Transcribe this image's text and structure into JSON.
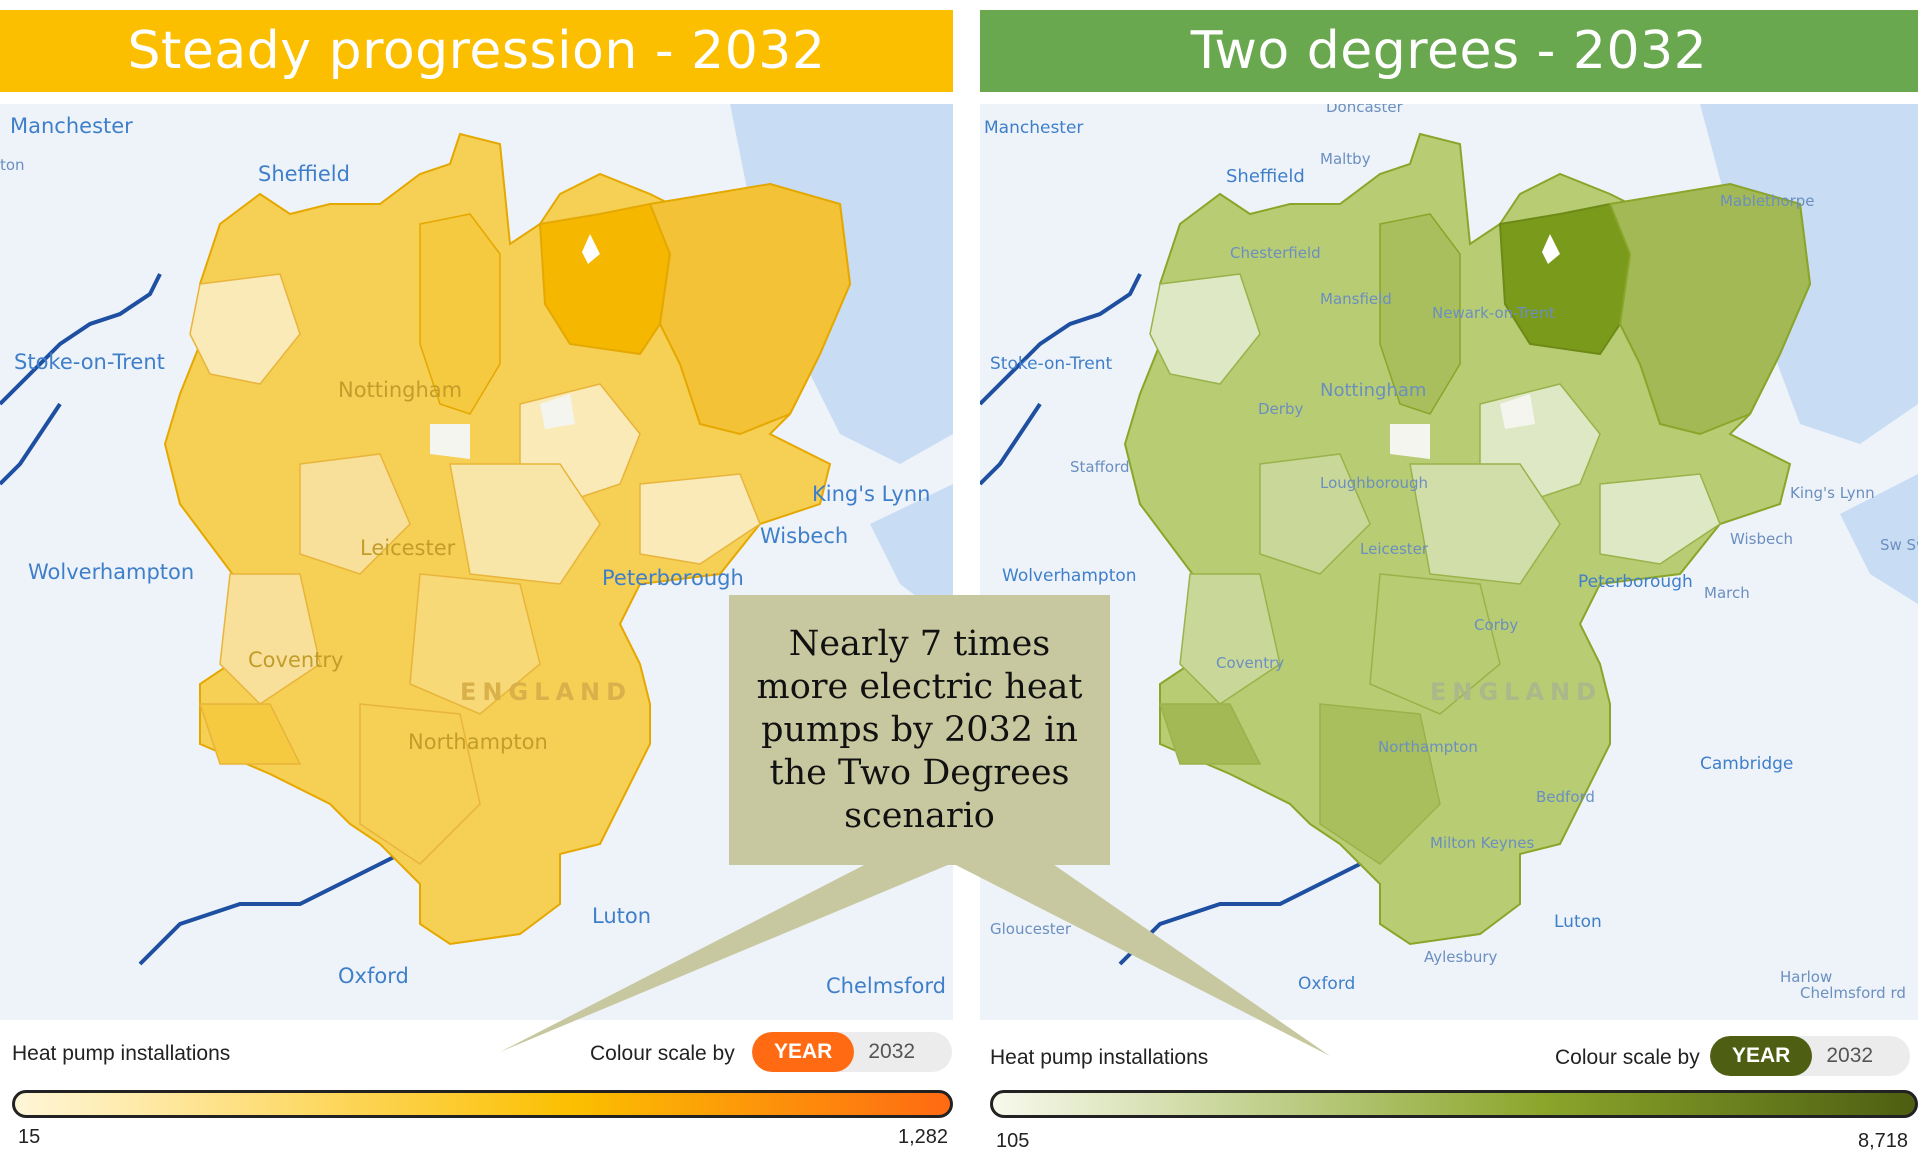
{
  "panels": [
    {
      "title": "Steady progression - 2032",
      "accent": "#fbbf00",
      "fill_dark": "#f5b700",
      "fill_mid": "#f6cf55",
      "fill_light": "#faeab8",
      "legend_title": "Heat pump installations",
      "colour_scale_label": "Colour scale by",
      "toggle_on": "YEAR",
      "toggle_off": "2032",
      "toggle_color": "#ff6a13",
      "gradient": [
        "#fff6d8",
        "#fbbf00",
        "#ff6a13"
      ],
      "min": "15",
      "max": "1,282",
      "places": [
        "Manchester",
        "ton",
        "Sheffield",
        "Stoke-on-Trent",
        "Nottingham",
        "Leicester",
        "Wolverhampton",
        "Coventry",
        "Northampton",
        "ENGLAND",
        "Peterborough",
        "King's Lynn",
        "Wisbech",
        "Luton",
        "Oxford",
        "Chelmsford"
      ]
    },
    {
      "title": "Two degrees - 2032",
      "accent": "#6aa84f",
      "fill_dark": "#7a9a1c",
      "fill_mid": "#a9bf5e",
      "fill_light": "#dfe8c4",
      "legend_title": "Heat pump installations",
      "colour_scale_label": "Colour scale by",
      "toggle_on": "YEAR",
      "toggle_off": "2032",
      "toggle_color": "#4e5e12",
      "gradient": [
        "#f7f9ec",
        "#8aa52a",
        "#4e5e12"
      ],
      "min": "105",
      "max": "8,718",
      "places": [
        "Doncaster",
        "Manchester",
        "Maltby",
        "Sheffield",
        "Mablethorpe",
        "Chesterfield",
        "Mansfield",
        "Newark-on-Trent",
        "Stoke-on-Trent",
        "Derby",
        "Nottingham",
        "Stafford",
        "Loughborough",
        "King's Lynn",
        "Leicester",
        "Wisbech",
        "Sw Sw",
        "Wolverhampton",
        "Peterborough",
        "March",
        "Corby",
        "Coventry",
        "ENGLAND",
        "Northampton",
        "Cambridge",
        "Bedford",
        "Milton Keynes",
        "Gloucester",
        "Luton",
        "Aylesbury",
        "Harlow",
        "Oxford",
        "Chelmsford rd"
      ]
    }
  ],
  "callout": "Nearly 7 times more electric heat pumps by 2032 in the Two Degrees scenario",
  "callout_color": "#c8c8a0"
}
